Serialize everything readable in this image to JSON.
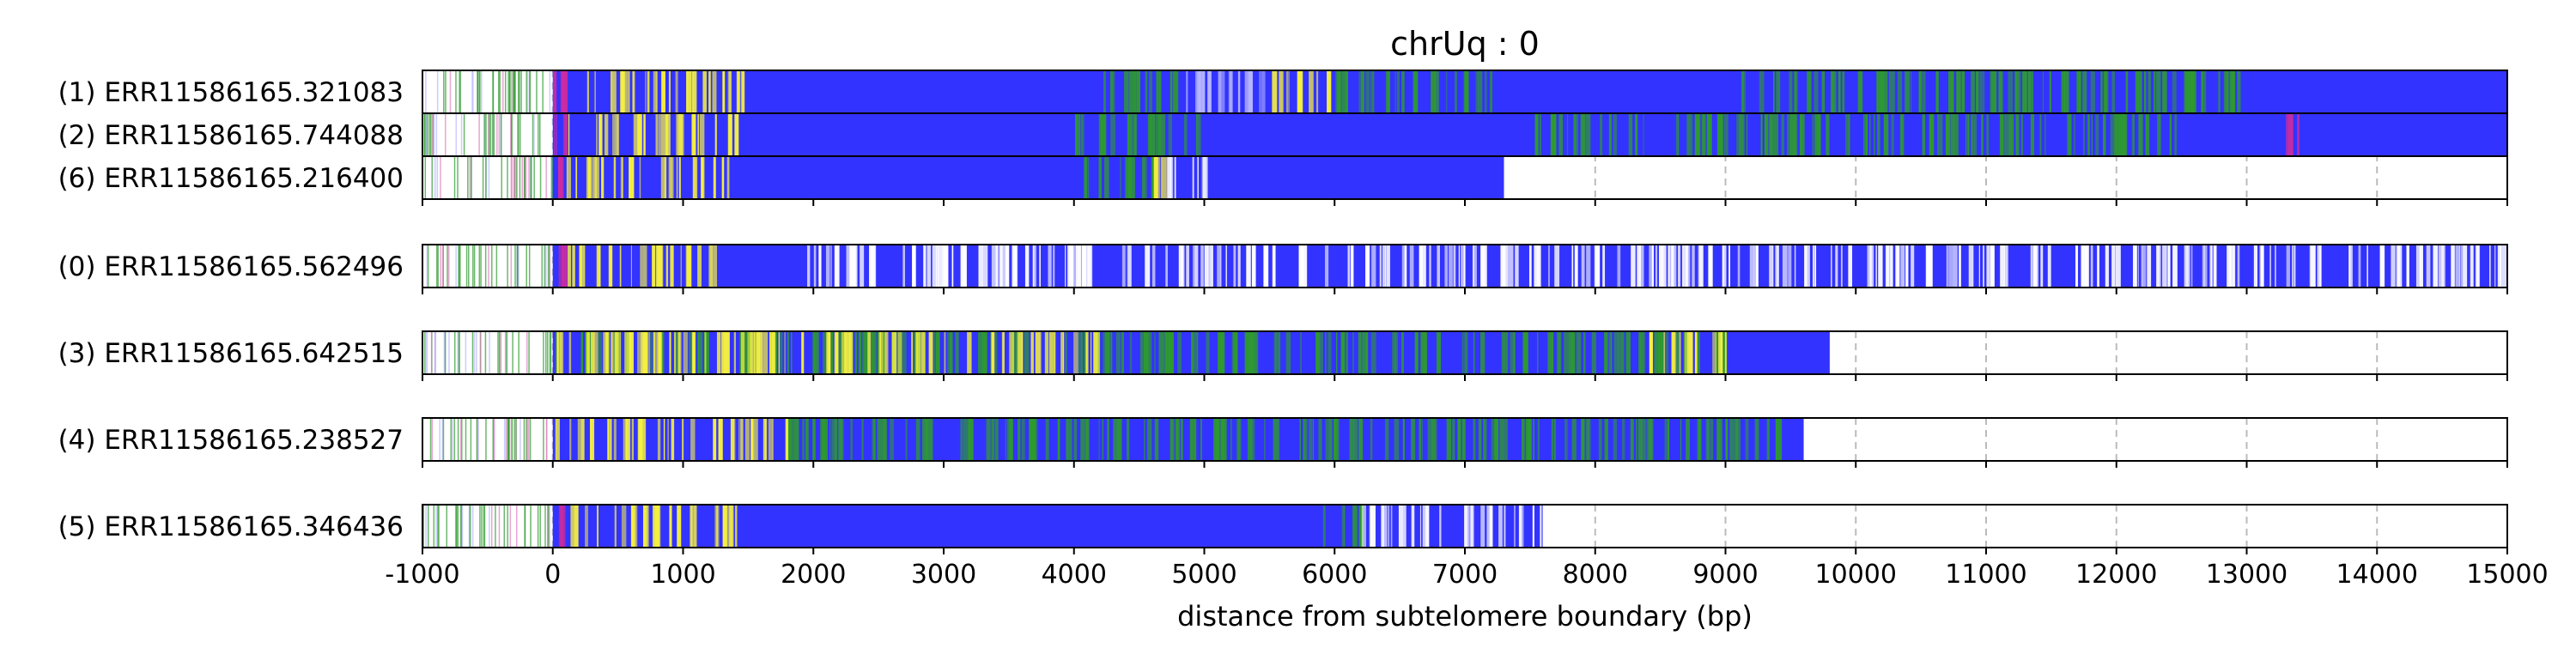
{
  "chart_data": {
    "type": "heatmap",
    "title": "chrUq : 0",
    "xlabel": "distance from subtelomere boundary (bp)",
    "xlim": [
      -1000,
      15000
    ],
    "xticks": [
      "-1000",
      "0",
      "1000",
      "2000",
      "3000",
      "4000",
      "5000",
      "6000",
      "7000",
      "8000",
      "9000",
      "10000",
      "11000",
      "12000",
      "13000",
      "14000",
      "15000"
    ],
    "grid": "vertical dashed",
    "colors": {
      "base": "#3333ff",
      "yellow": "#f5f040",
      "green": "#2e9a2e",
      "white": "#ffffff",
      "light": "#b8b8ff",
      "magenta": "#d02c9c",
      "pink": "#e080c0",
      "grid": "#bbbbbb"
    },
    "groups": [
      {
        "reads": [
          {
            "label": "(1) ERR11586165.321083",
            "start": -1000,
            "end": 15000,
            "fill_start": 0,
            "bands": [
              [
                0,
                150,
                "magenta"
              ],
              [
                150,
                1450,
                "yellow"
              ],
              [
                4200,
                4800,
                "green"
              ],
              [
                4800,
                5500,
                "light"
              ],
              [
                5500,
                5950,
                "yellow"
              ],
              [
                5950,
                7200,
                "green"
              ],
              [
                9100,
                13000,
                "green"
              ]
            ]
          },
          {
            "label": "(2) ERR11586165.744088",
            "start": -1000,
            "end": 15000,
            "fill_start": 0,
            "bands": [
              [
                0,
                100,
                "magenta"
              ],
              [
                100,
                1400,
                "yellow"
              ],
              [
                4000,
                5000,
                "green"
              ],
              [
                7500,
                12500,
                "green"
              ],
              [
                13300,
                13400,
                "magenta"
              ]
            ]
          },
          {
            "label": "(6) ERR11586165.216400",
            "start": -1000,
            "end": 7300,
            "fill_start": 0,
            "bands": [
              [
                0,
                100,
                "magenta"
              ],
              [
                100,
                1400,
                "yellow"
              ],
              [
                4000,
                4600,
                "green"
              ],
              [
                4600,
                4700,
                "yellow"
              ],
              [
                4700,
                5000,
                "white"
              ]
            ]
          }
        ]
      },
      {
        "reads": [
          {
            "label": "(0) ERR11586165.562496",
            "start": -1000,
            "end": 15000,
            "fill_start": 0,
            "bands": [
              [
                0,
                100,
                "magenta"
              ],
              [
                100,
                1300,
                "yellow"
              ],
              [
                1950,
                15000,
                "white"
              ]
            ]
          }
        ]
      },
      {
        "reads": [
          {
            "label": "(3) ERR11586165.642515",
            "start": -1000,
            "end": 9800,
            "fill_start": 0,
            "bands": [
              [
                0,
                9000,
                "green"
              ],
              [
                0,
                4200,
                "yellow"
              ],
              [
                8400,
                9000,
                "yellow"
              ]
            ]
          }
        ]
      },
      {
        "reads": [
          {
            "label": "(4) ERR11586165.238527",
            "start": -1000,
            "end": 9600,
            "fill_start": 0,
            "bands": [
              [
                0,
                1800,
                "yellow"
              ],
              [
                1800,
                9400,
                "green"
              ]
            ]
          }
        ]
      },
      {
        "reads": [
          {
            "label": "(5) ERR11586165.346436",
            "start": -1000,
            "end": 7600,
            "fill_start": 0,
            "bands": [
              [
                0,
                100,
                "magenta"
              ],
              [
                100,
                1400,
                "yellow"
              ],
              [
                5900,
                6300,
                "green"
              ],
              [
                6200,
                7600,
                "white"
              ]
            ]
          }
        ]
      }
    ]
  }
}
